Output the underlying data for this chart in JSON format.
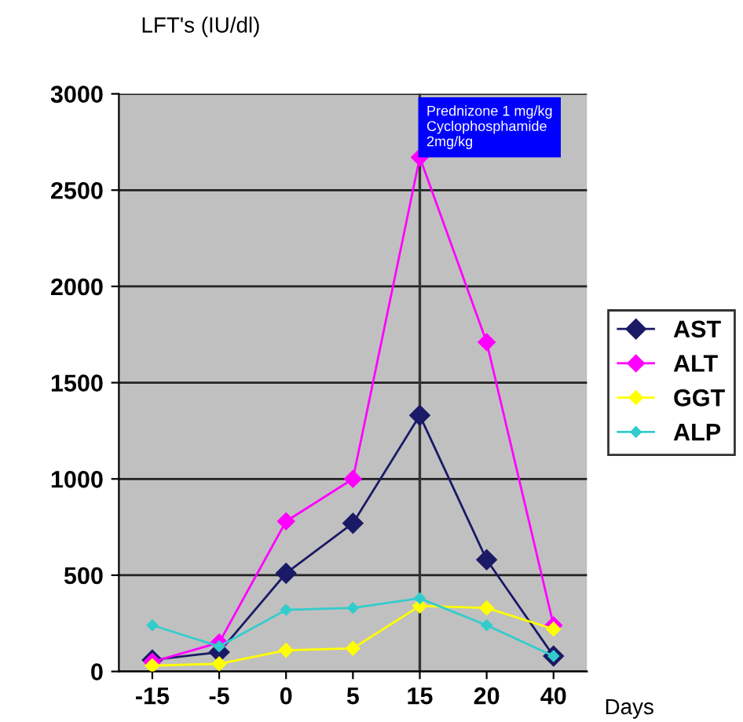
{
  "chart_data": {
    "type": "line",
    "xlabel": "Days",
    "ylabel": "LFT's (IU/dl)",
    "categories": [
      "-15",
      "-5",
      "0",
      "5",
      "15",
      "20",
      "40"
    ],
    "series": [
      {
        "name": "AST",
        "color": "#1a1a66",
        "values": [
          60,
          100,
          510,
          770,
          1330,
          580,
          80
        ]
      },
      {
        "name": "ALT",
        "color": "#ff00ff",
        "values": [
          50,
          150,
          780,
          1000,
          2670,
          1710,
          240
        ]
      },
      {
        "name": "GGT",
        "color": "#ffff00",
        "values": [
          30,
          40,
          110,
          120,
          340,
          330,
          220
        ]
      },
      {
        "name": "ALP",
        "color": "#33cccc",
        "values": [
          240,
          130,
          320,
          330,
          380,
          240,
          80
        ]
      }
    ],
    "ylim": [
      0,
      3000
    ],
    "yticks": [
      0,
      500,
      1000,
      1500,
      2000,
      2500,
      3000
    ],
    "grid": "y",
    "legend": "right",
    "marker": "diamond",
    "line_style": "solid",
    "ref_lines": [
      {
        "axis": "x",
        "value": "15",
        "label": "Prednizone 1 mg/kg\nCyclophosphamide\n2mg/kg",
        "color": "#333333"
      }
    ]
  }
}
